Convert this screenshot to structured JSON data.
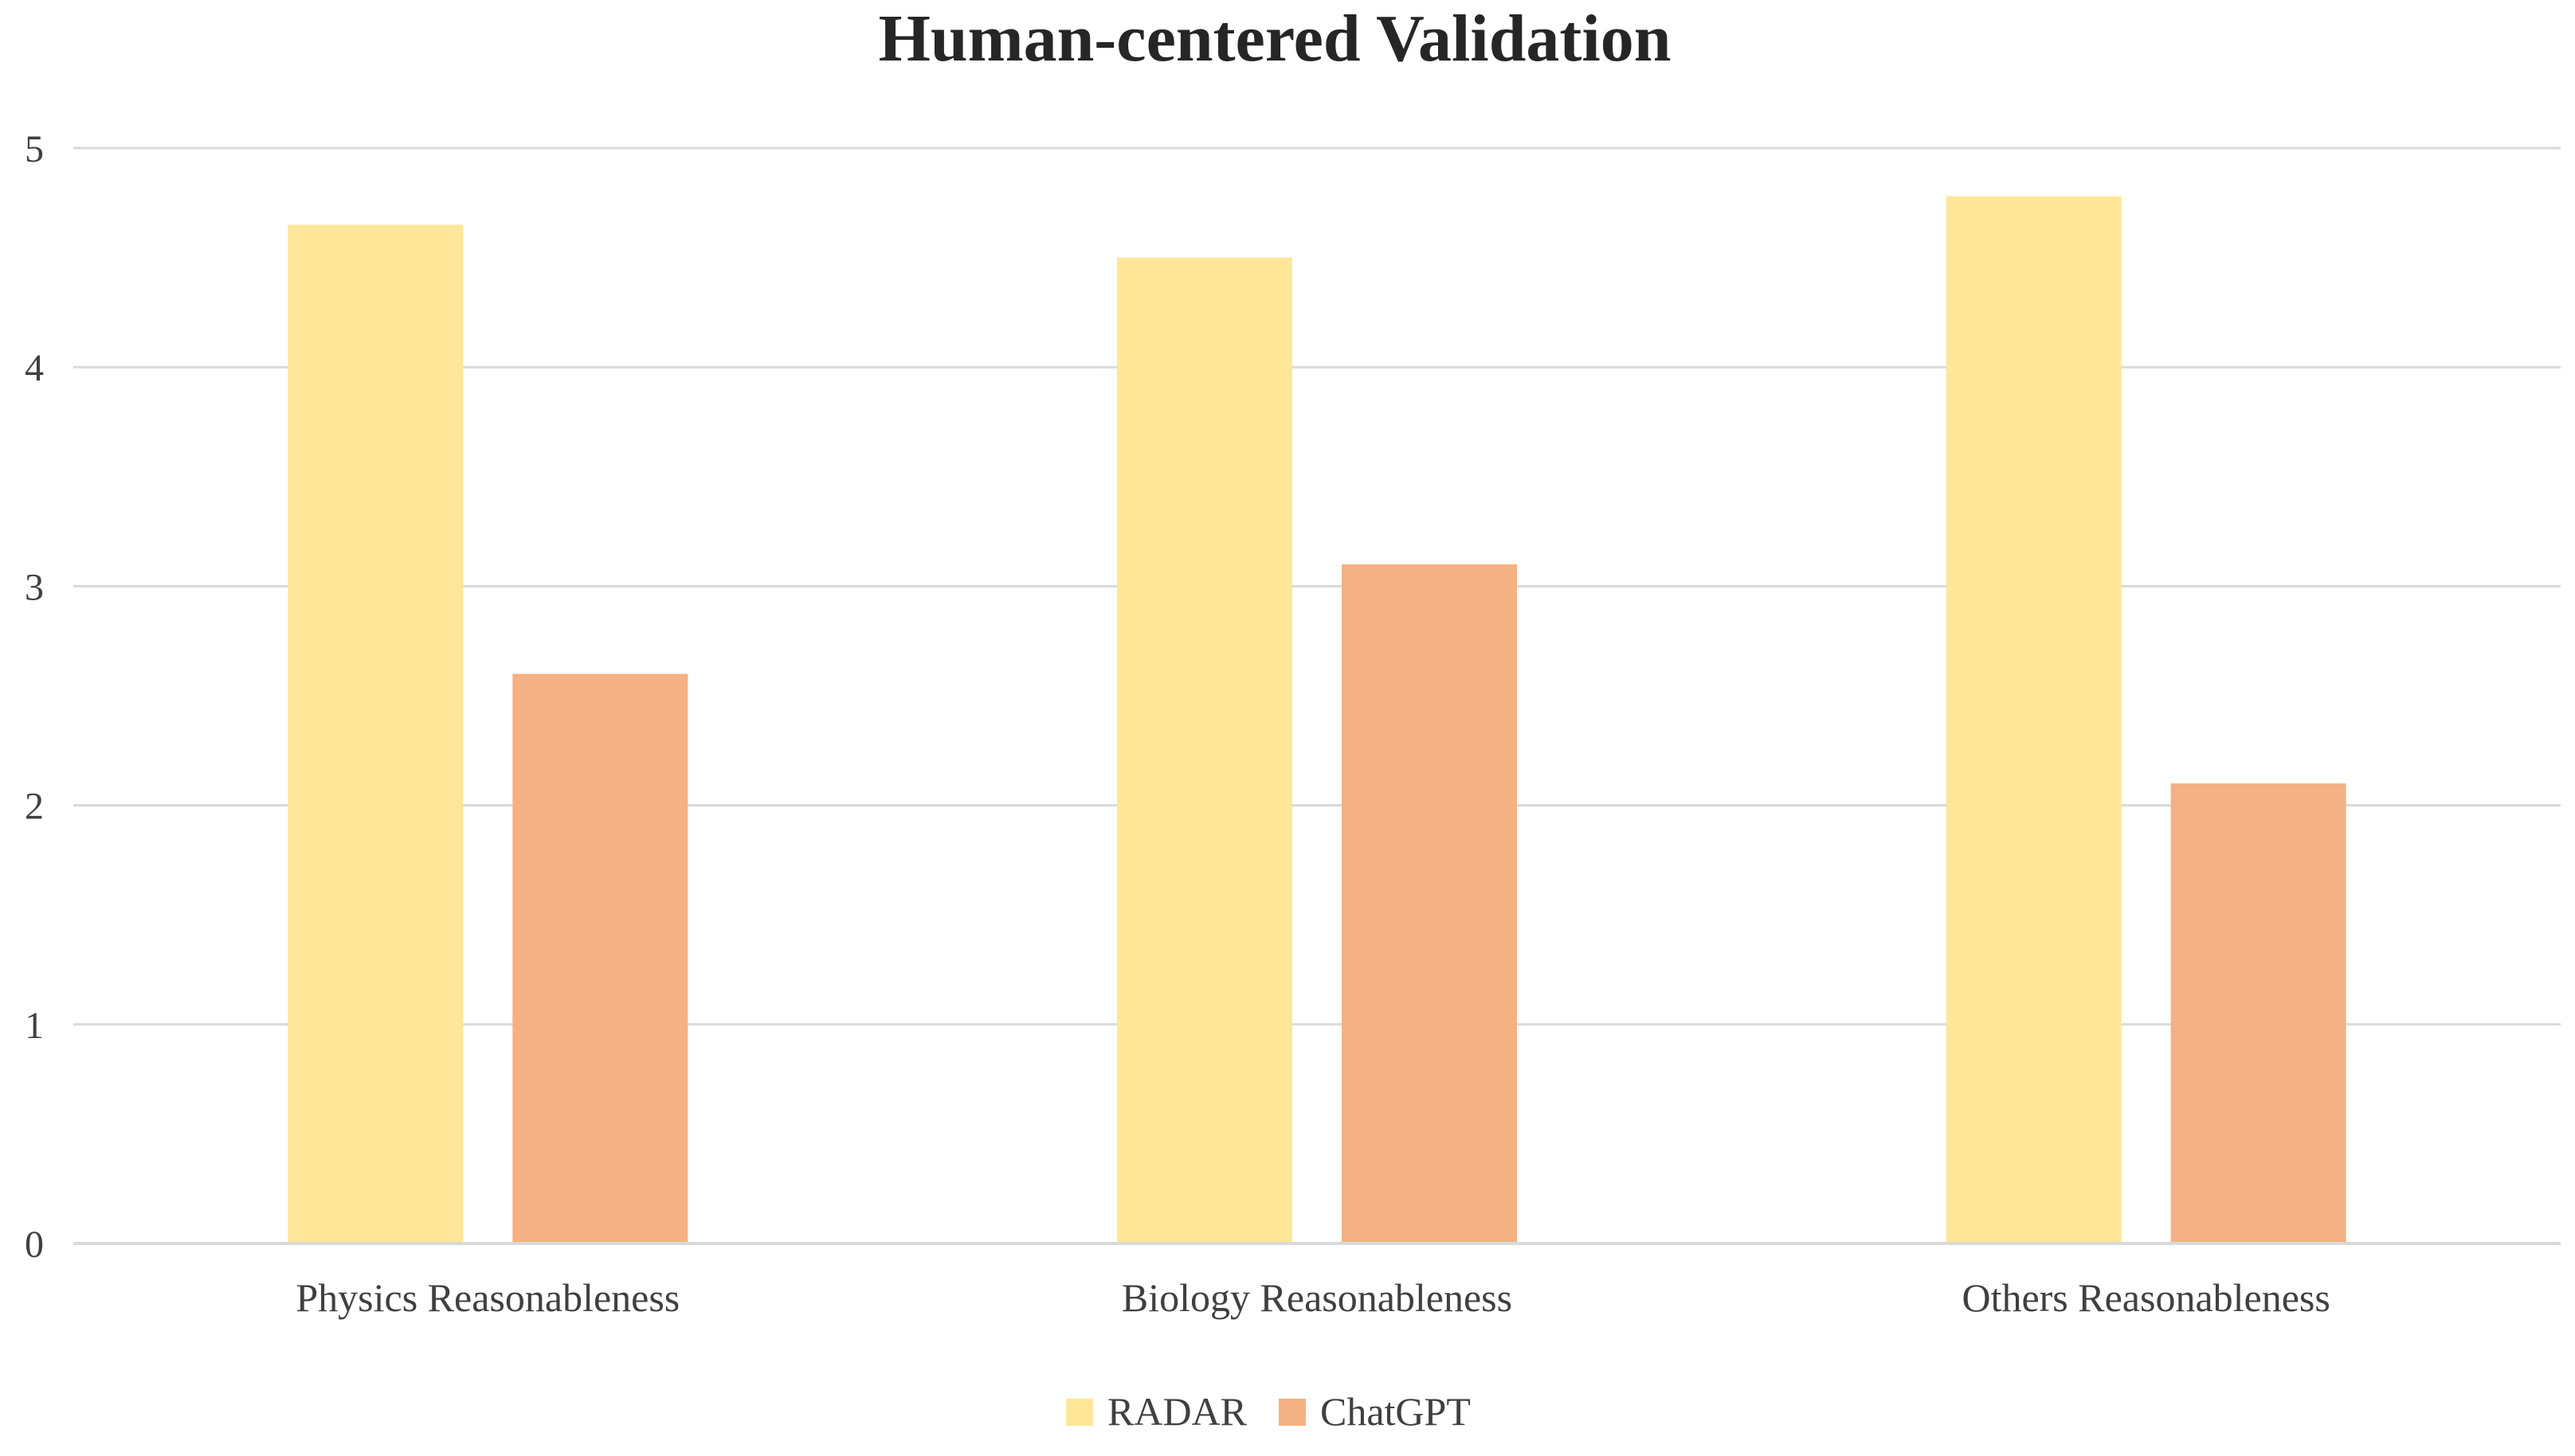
{
  "chart_data": {
    "type": "bar",
    "title": "Human-centered Validation",
    "xlabel": "",
    "ylabel": "",
    "ylim": [
      0,
      5
    ],
    "yticks": [
      0,
      1,
      2,
      3,
      4,
      5
    ],
    "yticks_text": [
      "0",
      "1",
      "2",
      "3",
      "4",
      "5"
    ],
    "grid": true,
    "legend_position": "bottom",
    "categories": [
      "Physics Reasonableness",
      "Biology Reasonableness",
      "Others Reasonableness"
    ],
    "series": [
      {
        "name": "RADAR",
        "color": "#FFE699",
        "values": [
          4.65,
          4.5,
          4.78
        ]
      },
      {
        "name": "ChatGPT",
        "color": "#F4B183",
        "values": [
          2.6,
          3.1,
          2.1
        ]
      }
    ]
  }
}
